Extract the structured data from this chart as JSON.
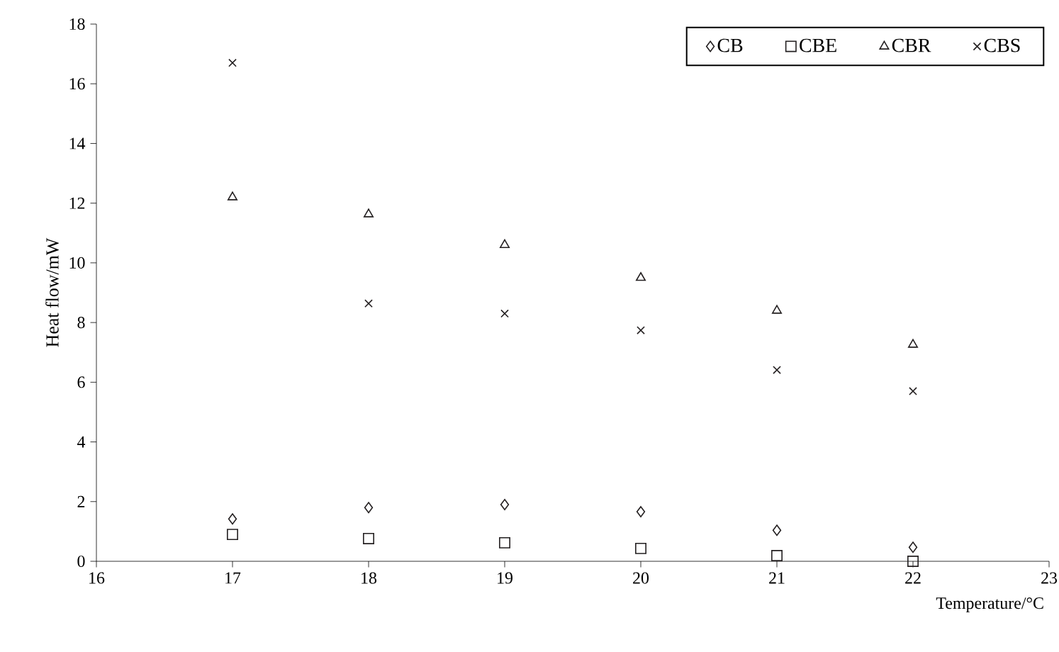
{
  "chart_data": {
    "type": "scatter",
    "xlabel": "Temperature/°C",
    "ylabel": "Heat flow/mW",
    "x": [
      17,
      18,
      19,
      20,
      21,
      22
    ],
    "series": [
      {
        "name": "CB",
        "color": "#231f20",
        "marker": "diamond",
        "values": [
          1.42,
          1.8,
          1.9,
          1.66,
          1.04,
          0.47
        ]
      },
      {
        "name": "CBE",
        "color": "#231f20",
        "marker": "square",
        "values": [
          0.9,
          0.76,
          0.62,
          0.43,
          0.19,
          0
        ]
      },
      {
        "name": "CBR",
        "color": "#231f20",
        "marker": "triangle",
        "values": [
          12.2,
          11.63,
          10.6,
          9.5,
          8.4,
          7.26
        ]
      },
      {
        "name": "CBS",
        "color": "#231f20",
        "marker": "cross",
        "values": [
          16.7,
          8.64,
          8.3,
          7.74,
          6.41,
          5.7
        ]
      }
    ],
    "xlim": [
      16,
      23
    ],
    "xticks": [
      16,
      17,
      18,
      19,
      20,
      21,
      22,
      23
    ],
    "ylim": [
      0,
      18
    ],
    "yticks": [
      0,
      2,
      4,
      6,
      8,
      10,
      12,
      14,
      16,
      18
    ],
    "grid": false,
    "legend": "top right"
  }
}
